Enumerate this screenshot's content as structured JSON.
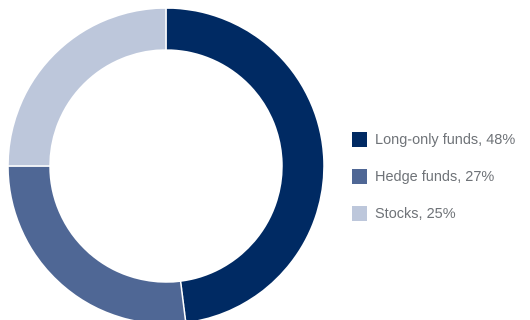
{
  "chart_data": {
    "type": "pie",
    "style": "donut",
    "title": "",
    "categories": [
      "Long-only funds",
      "Hedge funds",
      "Stocks"
    ],
    "values": [
      48,
      27,
      25
    ],
    "unit": "%",
    "colors": [
      "#002a63",
      "#4f6795",
      "#bdc7db"
    ],
    "legend_placement": "right",
    "legend": [
      {
        "label": "Long-only funds, 48%",
        "color": "#002a63"
      },
      {
        "label": "Hedge funds, 27%",
        "color": "#4f6795"
      },
      {
        "label": "Stocks, 25%",
        "color": "#bdc7db"
      }
    ]
  }
}
